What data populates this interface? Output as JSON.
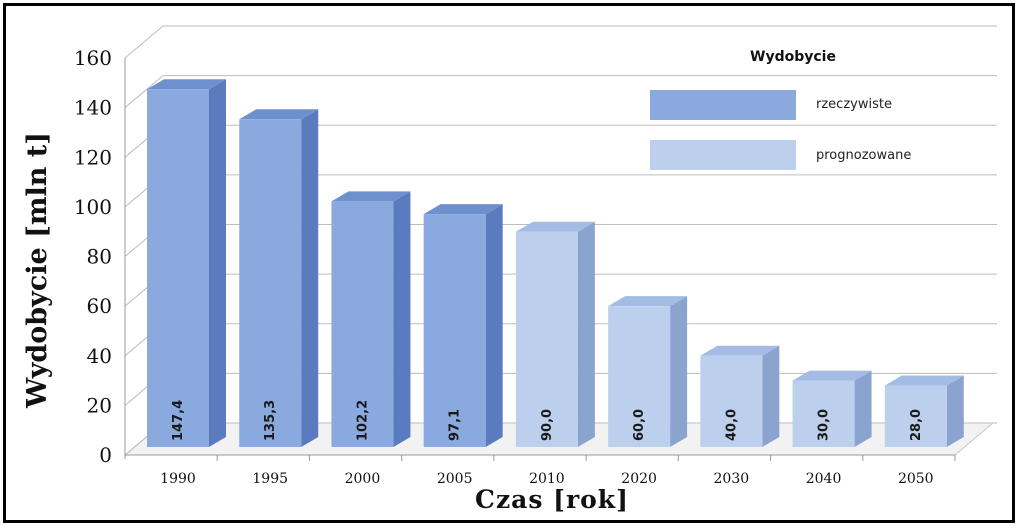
{
  "chart_data": {
    "type": "bar",
    "categories": [
      "1990",
      "1995",
      "2000",
      "2005",
      "2010",
      "2020",
      "2030",
      "2040",
      "2050"
    ],
    "values": [
      147.4,
      135.3,
      102.2,
      97.1,
      90.0,
      60.0,
      40.0,
      30.0,
      28.0
    ],
    "value_labels": [
      "147,4",
      "135,3",
      "102,2",
      "97,1",
      "90,0",
      "60,0",
      "40,0",
      "30,0",
      "28,0"
    ],
    "series_kind": [
      "rzeczywiste",
      "rzeczywiste",
      "rzeczywiste",
      "rzeczywiste",
      "prognozowane",
      "prognozowane",
      "prognozowane",
      "prognozowane",
      "prognozowane"
    ],
    "xlabel": "Czas [rok]",
    "ylabel": "Wydobycie [mln t]",
    "ylim": [
      0,
      160
    ],
    "yticks": [
      "0",
      "20",
      "40",
      "60",
      "80",
      "100",
      "120",
      "140",
      "160"
    ],
    "grid": true,
    "legend": {
      "title": "Wydobycie",
      "placement": "top-right",
      "entries": [
        {
          "label": "rzeczywiste",
          "color": "#8aaadf"
        },
        {
          "label": "prognozowane",
          "color": "#bcd0ee"
        }
      ]
    },
    "colors": {
      "rzeczywiste": {
        "front": "#8aaadf",
        "side": "#5a7bbd",
        "top": "#6f90cf"
      },
      "prognozowane": {
        "front": "#bcd0ee",
        "side": "#8ba3cf",
        "top": "#a4bce4"
      }
    }
  }
}
